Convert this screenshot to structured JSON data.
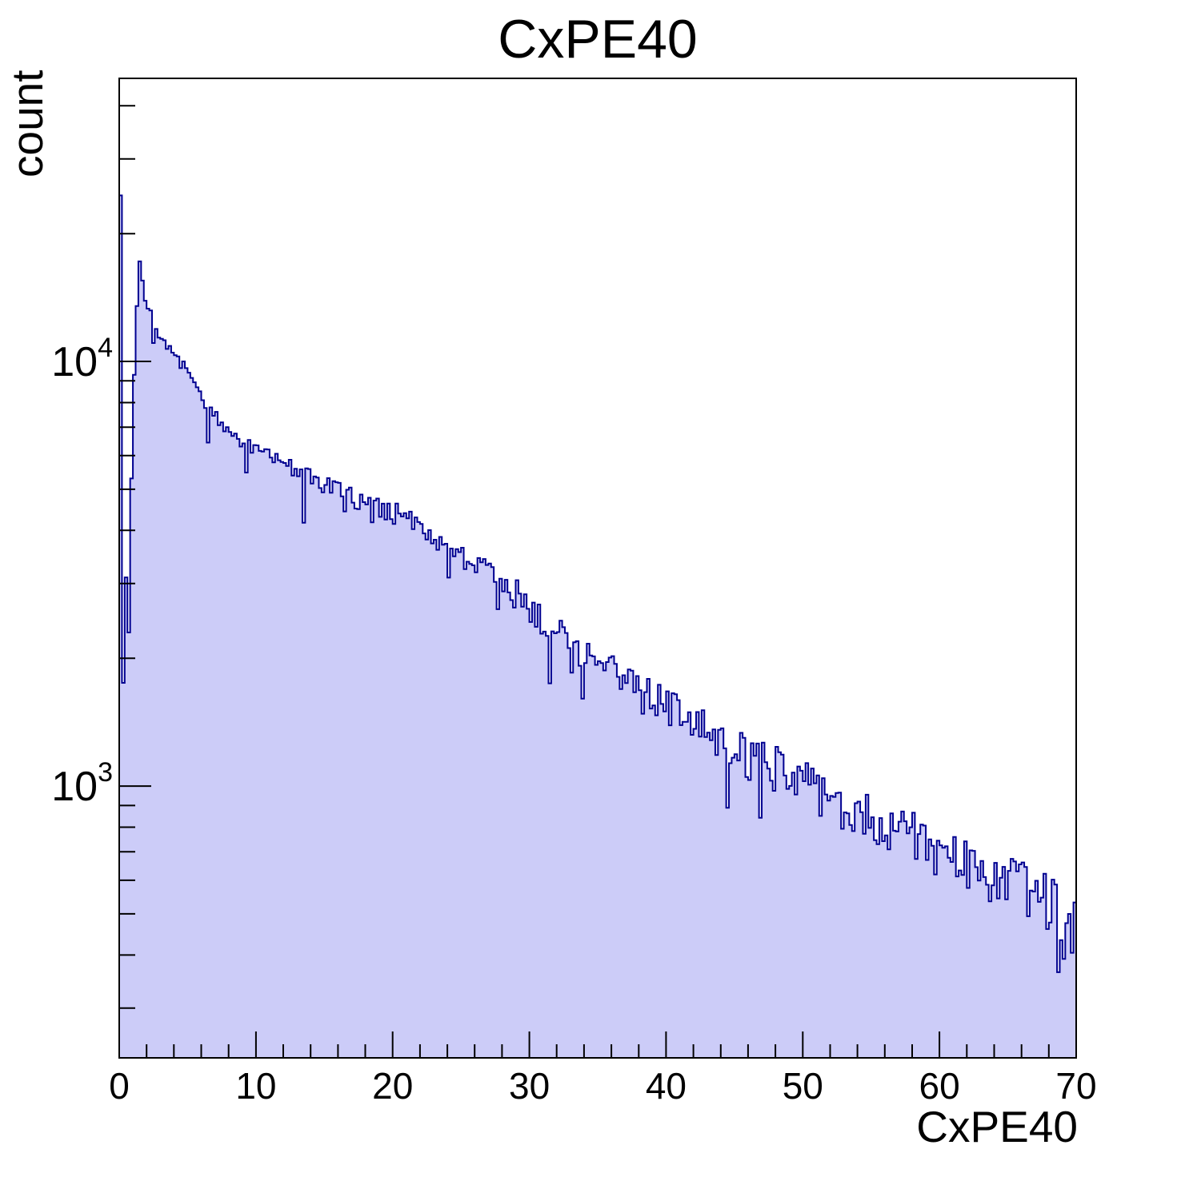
{
  "title": "CxPE40",
  "axes": {
    "x": {
      "label": "CxPE40",
      "min": 0,
      "max": 70,
      "major_ticks": [
        0,
        10,
        20,
        30,
        40,
        50,
        60,
        70
      ],
      "major_tick_labels": [
        "0",
        "10",
        "20",
        "30",
        "40",
        "50",
        "60",
        "70"
      ],
      "minor_ticks": [
        2,
        4,
        6,
        8,
        12,
        14,
        16,
        18,
        22,
        24,
        26,
        28,
        32,
        34,
        36,
        38,
        42,
        44,
        46,
        48,
        52,
        54,
        56,
        58,
        62,
        64,
        66,
        68
      ]
    },
    "y": {
      "label": "count",
      "scale": "log",
      "min": 229,
      "max": 46416,
      "major_ticks": [
        {
          "value": 1000,
          "base": "10",
          "exp": "3"
        },
        {
          "value": 10000,
          "base": "10",
          "exp": "4"
        }
      ],
      "minor_ticks": [
        300,
        400,
        500,
        600,
        700,
        800,
        900,
        2000,
        3000,
        4000,
        5000,
        6000,
        7000,
        8000,
        9000,
        20000,
        30000,
        40000
      ]
    }
  },
  "chart_data": {
    "type": "bar",
    "subtype": "histogram-step-filled",
    "title": "CxPE40",
    "xlabel": "CxPE40",
    "ylabel": "count",
    "x_range": [
      0,
      70
    ],
    "n_bins": 350,
    "bin_width": 0.2,
    "y_scale": "log",
    "ylim": [
      229,
      46416
    ],
    "grid": false,
    "legend": false,
    "first_bins_values": [
      24600,
      1750,
      3100,
      2300,
      5300,
      9300,
      13500,
      17200,
      15500,
      13900
    ],
    "envelope_points": [
      [
        2,
        13500
      ],
      [
        2.5,
        12400
      ],
      [
        3,
        11500
      ],
      [
        3.5,
        10800
      ],
      [
        4,
        10300
      ],
      [
        4.5,
        9900
      ],
      [
        5,
        9500
      ],
      [
        5.5,
        8900
      ],
      [
        6,
        8300
      ],
      [
        6.5,
        7900
      ],
      [
        7,
        7500
      ],
      [
        7.5,
        7150
      ],
      [
        8,
        6800
      ],
      [
        8.5,
        6600
      ],
      [
        9,
        6450
      ],
      [
        10,
        6200
      ],
      [
        11,
        6000
      ],
      [
        12,
        5750
      ],
      [
        13,
        5500
      ],
      [
        14,
        5300
      ],
      [
        15,
        5100
      ],
      [
        16,
        4950
      ],
      [
        17,
        4800
      ],
      [
        18,
        4650
      ],
      [
        19,
        4550
      ],
      [
        20,
        4430
      ],
      [
        21,
        4250
      ],
      [
        22,
        4050
      ],
      [
        23,
        3850
      ],
      [
        24,
        3700
      ],
      [
        25,
        3550
      ],
      [
        26,
        3400
      ],
      [
        27,
        3250
      ],
      [
        28,
        3050
      ],
      [
        29,
        2850
      ],
      [
        30,
        2650
      ],
      [
        31,
        2450
      ],
      [
        32,
        2300
      ],
      [
        33,
        2180
      ],
      [
        34,
        2080
      ],
      [
        35,
        1980
      ],
      [
        36,
        1880
      ],
      [
        37,
        1790
      ],
      [
        38,
        1700
      ],
      [
        39,
        1620
      ],
      [
        40,
        1550
      ],
      [
        41,
        1480
      ],
      [
        42,
        1410
      ],
      [
        43,
        1350
      ],
      [
        44,
        1290
      ],
      [
        45,
        1235
      ],
      [
        46,
        1180
      ],
      [
        47,
        1145
      ],
      [
        48,
        1110
      ],
      [
        49,
        1075
      ],
      [
        50,
        1040
      ],
      [
        51,
        990
      ],
      [
        52,
        940
      ],
      [
        53,
        900
      ],
      [
        54,
        860
      ],
      [
        55,
        835
      ],
      [
        56,
        815
      ],
      [
        57,
        795
      ],
      [
        58,
        775
      ],
      [
        59,
        745
      ],
      [
        60,
        715
      ],
      [
        61,
        685
      ],
      [
        62,
        655
      ],
      [
        63,
        633
      ],
      [
        64,
        613
      ],
      [
        65,
        594
      ],
      [
        66,
        576
      ],
      [
        67,
        558
      ],
      [
        68,
        530
      ],
      [
        69,
        500
      ],
      [
        70,
        472
      ]
    ],
    "noise": {
      "seed": 7,
      "base_amp": 0.025,
      "amp_per_x": 0.002,
      "dip_prob": 0.07,
      "dip_depth": 0.25
    },
    "colors": {
      "fill": "#ccccf8",
      "line": "#000090",
      "frame": "#000000",
      "background": "#ffffff"
    }
  }
}
